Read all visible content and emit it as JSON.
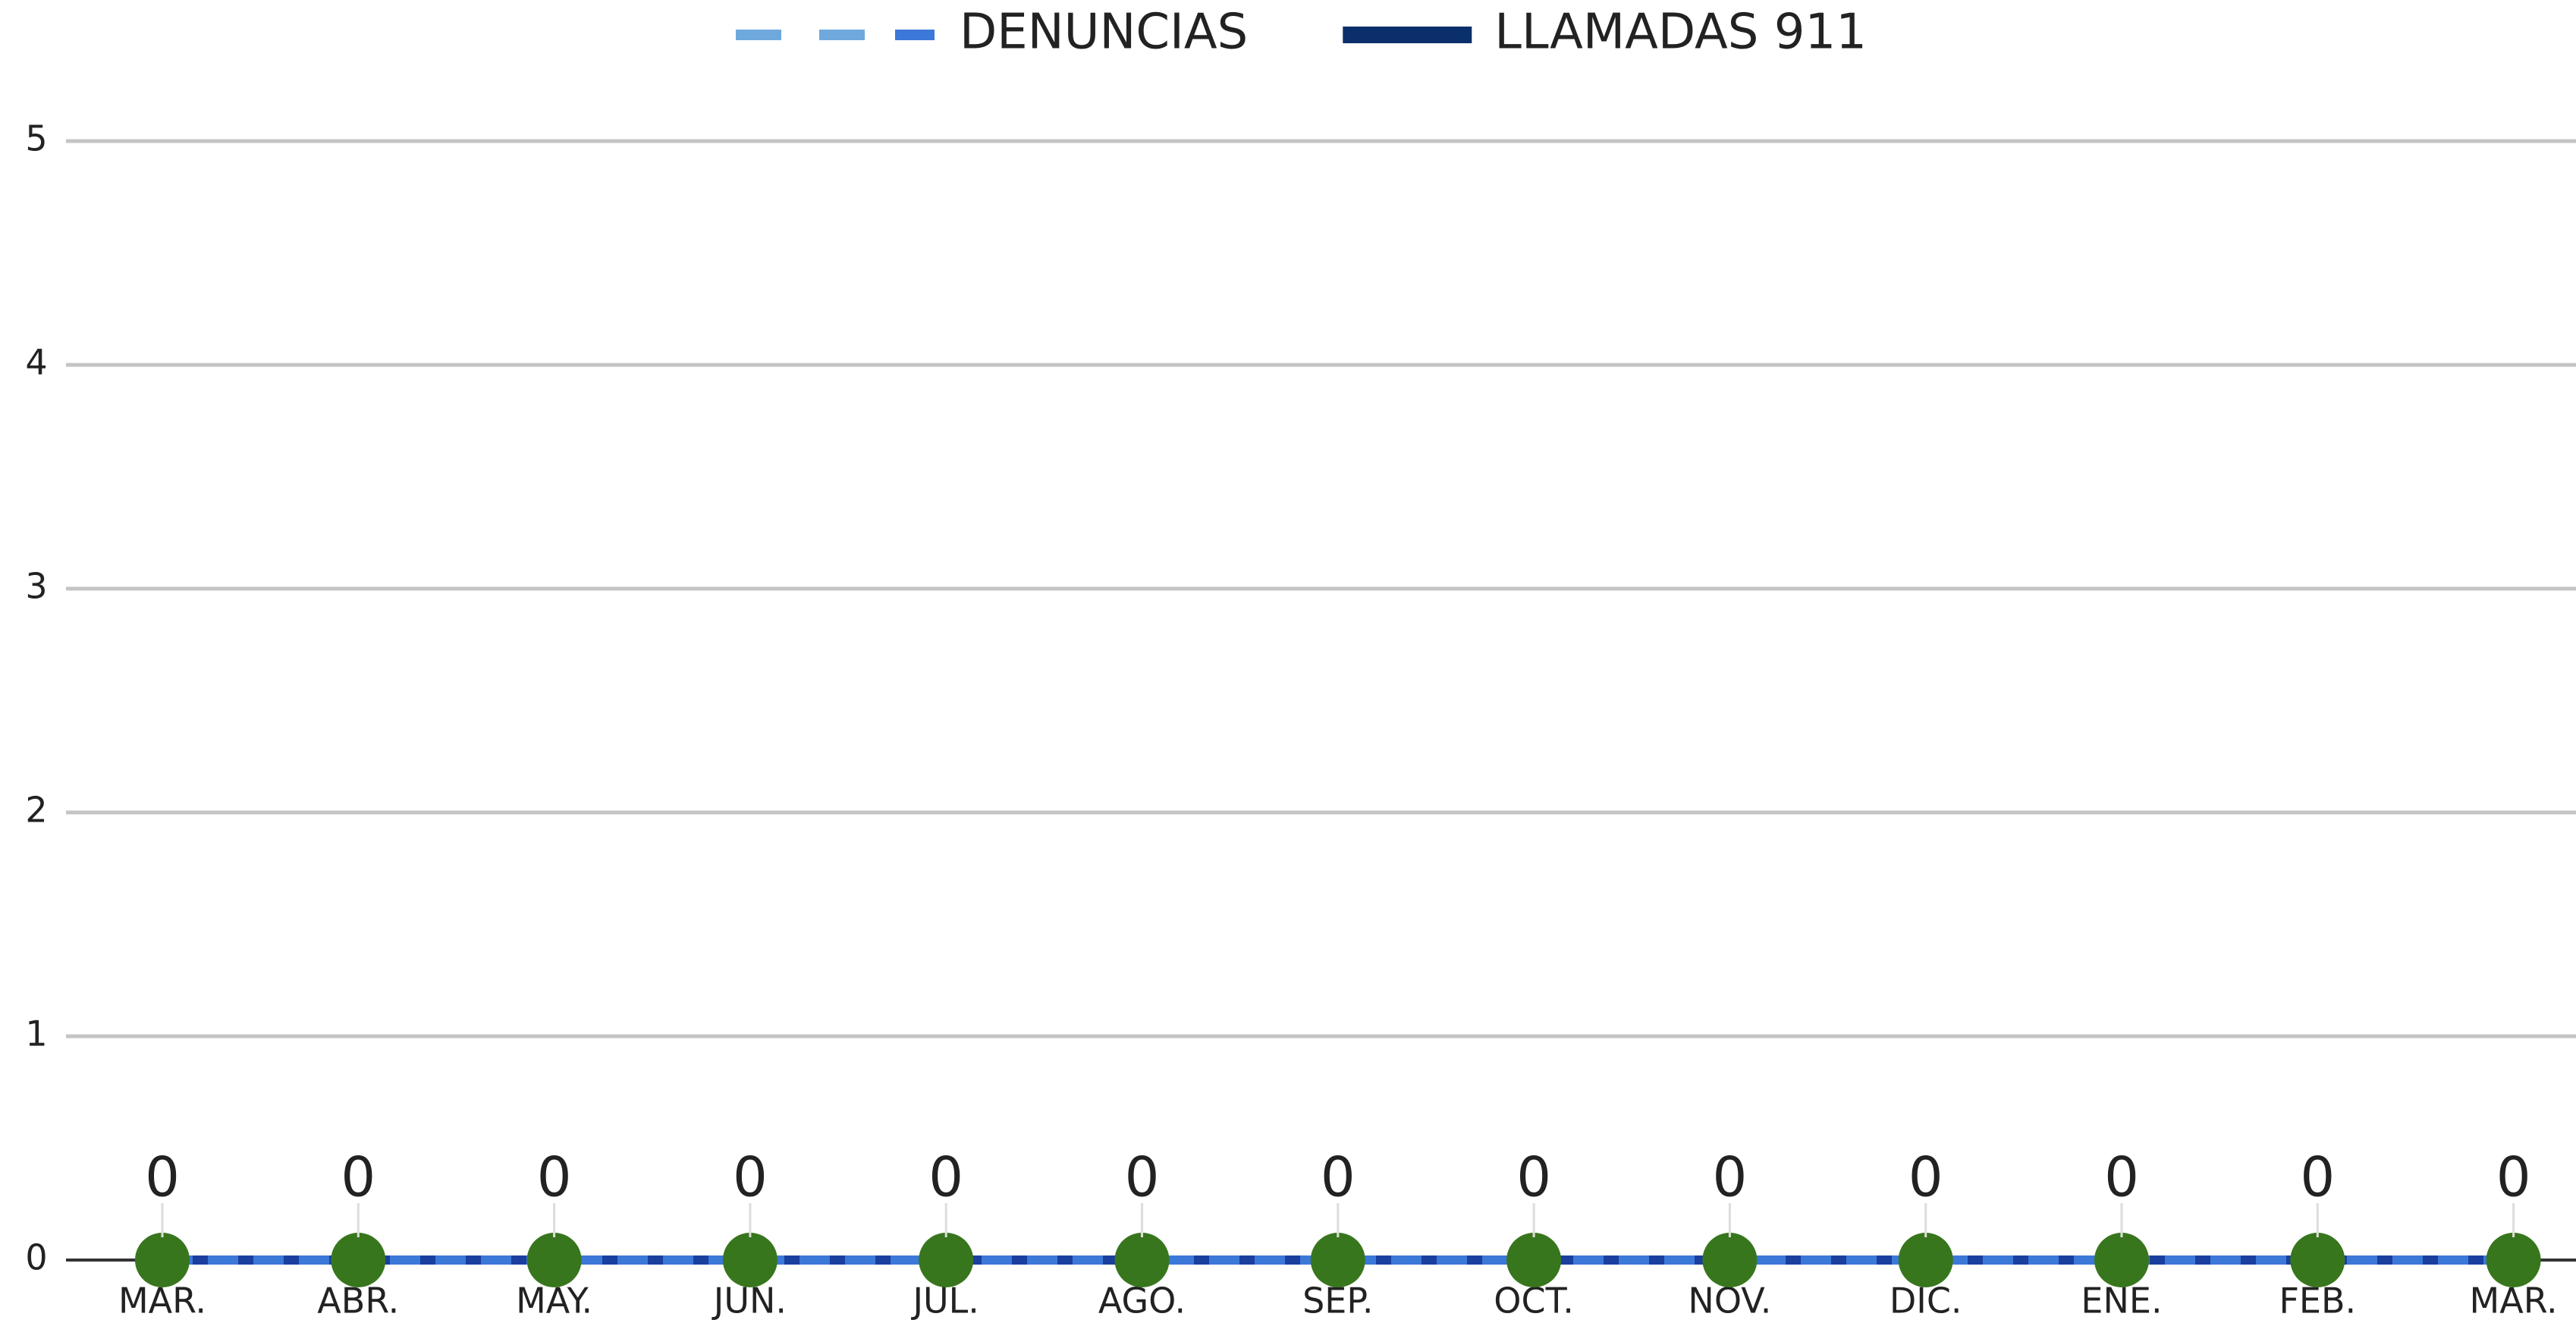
{
  "chart_data": {
    "type": "line",
    "categories": [
      "MAR.",
      "ABR.",
      "MAY.",
      "JUN.",
      "JUL.",
      "AGO.",
      "SEP.",
      "OCT.",
      "NOV.",
      "DIC.",
      "ENE.",
      "FEB.",
      "MAR."
    ],
    "series": [
      {
        "name": "DENUNCIAS",
        "color": "#3c78d8",
        "dashed": true,
        "values": [
          0,
          0,
          0,
          0,
          0,
          0,
          0,
          0,
          0,
          0,
          0,
          0,
          0
        ]
      },
      {
        "name": "LLAMADAS 911",
        "color": "#0b2f6b",
        "marker_color": "#38761d",
        "data_labels": true,
        "values": [
          0,
          0,
          0,
          0,
          0,
          0,
          0,
          0,
          0,
          0,
          0,
          0,
          0
        ]
      }
    ],
    "ylim": [
      0,
      5
    ],
    "yticks": [
      0,
      1,
      2,
      3,
      4,
      5
    ],
    "grid": true,
    "legend": "top"
  }
}
